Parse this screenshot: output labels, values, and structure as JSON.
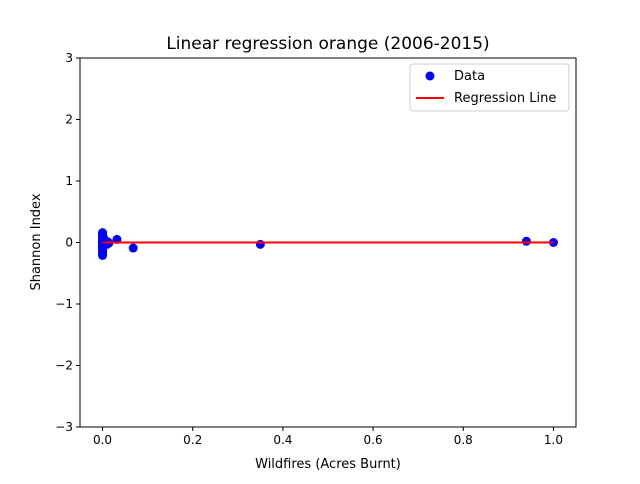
{
  "chart_data": {
    "type": "scatter",
    "title": "Linear regression orange (2006-2015)",
    "xlabel": "Wildfires (Acres Burnt)",
    "ylabel": "Shannon Index",
    "xlim": [
      -0.05,
      1.05
    ],
    "ylim": [
      -3,
      3
    ],
    "xticks": [
      0.0,
      0.2,
      0.4,
      0.6,
      0.8,
      1.0
    ],
    "xtick_labels": [
      "0.0",
      "0.2",
      "0.4",
      "0.6",
      "0.8",
      "1.0"
    ],
    "yticks": [
      -3,
      -2,
      -1,
      0,
      1,
      2,
      3
    ],
    "ytick_labels": [
      "−3",
      "−2",
      "−1",
      "0",
      "1",
      "2",
      "3"
    ],
    "grid": false,
    "legend_position": "top-right",
    "series": [
      {
        "name": "Data",
        "kind": "scatter",
        "color": "#0000ff",
        "points": [
          [
            0.0,
            0.16
          ],
          [
            0.0,
            0.13
          ],
          [
            0.0,
            0.11
          ],
          [
            0.0,
            0.09
          ],
          [
            0.0,
            0.07
          ],
          [
            0.0,
            0.05
          ],
          [
            0.0,
            0.03
          ],
          [
            0.0,
            0.01
          ],
          [
            0.0,
            -0.01
          ],
          [
            0.0,
            -0.03
          ],
          [
            0.0,
            -0.05
          ],
          [
            0.0,
            -0.07
          ],
          [
            0.0,
            -0.09
          ],
          [
            0.0,
            -0.12
          ],
          [
            0.0,
            -0.15
          ],
          [
            0.0,
            -0.18
          ],
          [
            0.0,
            -0.21
          ],
          [
            0.002,
            0.08
          ],
          [
            0.002,
            -0.06
          ],
          [
            0.003,
            0.04
          ],
          [
            0.004,
            -0.02
          ],
          [
            0.005,
            0.02
          ],
          [
            0.006,
            -0.04
          ],
          [
            0.008,
            0.0
          ],
          [
            0.01,
            -0.03
          ],
          [
            0.012,
            0.01
          ],
          [
            0.014,
            -0.01
          ],
          [
            0.032,
            0.05
          ],
          [
            0.068,
            -0.09
          ],
          [
            0.35,
            -0.03
          ],
          [
            0.94,
            0.02
          ],
          [
            1.0,
            0.0
          ]
        ]
      },
      {
        "name": "Regression Line",
        "kind": "line",
        "color": "#ff0000",
        "x": [
          0.0,
          1.0
        ],
        "y": [
          0.0,
          0.0
        ]
      }
    ]
  }
}
